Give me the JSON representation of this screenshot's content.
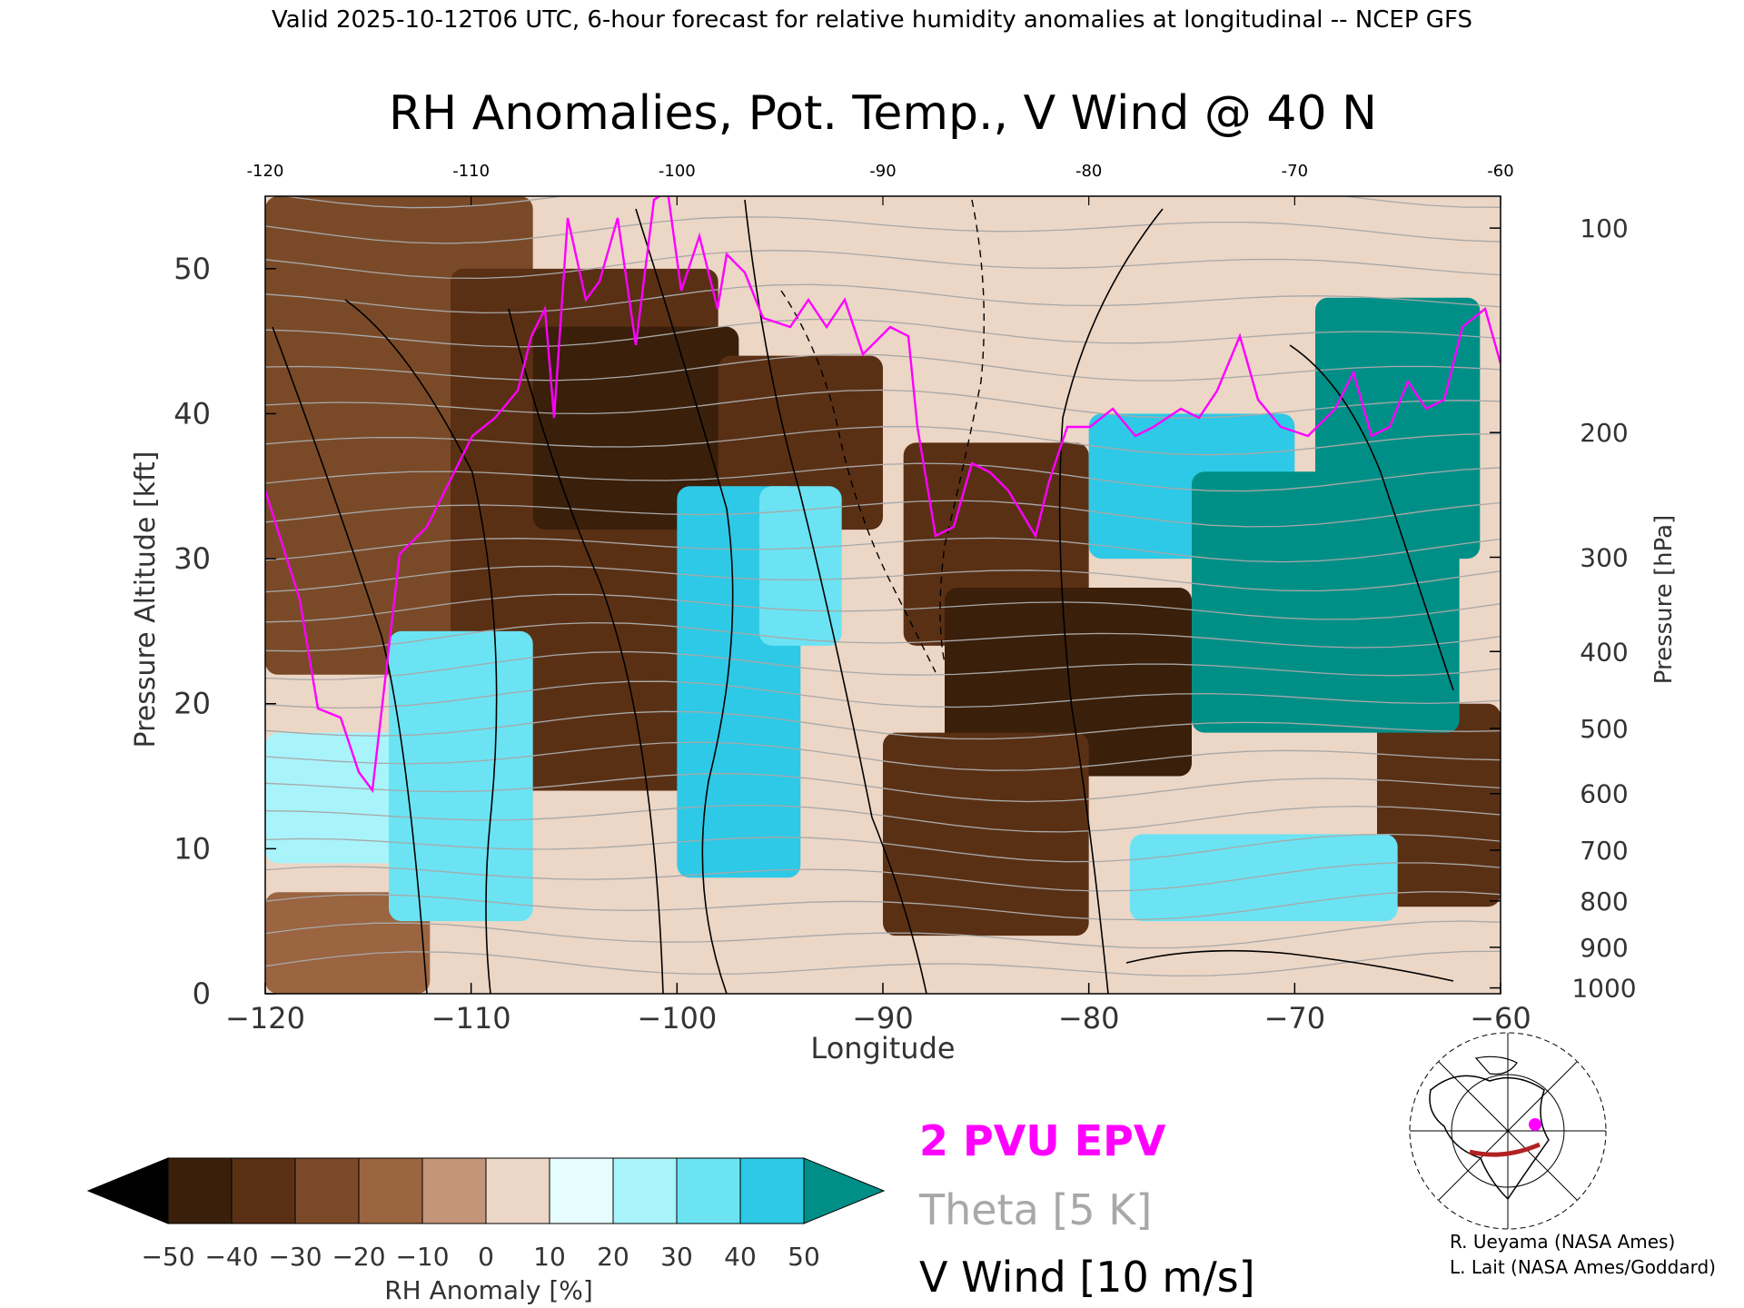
{
  "header": {
    "valid_line": "Valid 2025-10-12T06 UTC, 6-hour forecast for relative humidity anomalies at longitudinal -- NCEP GFS"
  },
  "chart_data": {
    "type": "heatmap",
    "title": "RH Anomalies, Pot. Temp., V Wind @ 40 N",
    "xlabel": "Longitude",
    "ylabel": "Pressure Altitude [kft]",
    "ylabel_right": "Pressure [hPa]",
    "xlim": [
      -120,
      -60
    ],
    "ylim": [
      0,
      55
    ],
    "x_ticks": [
      -120,
      -110,
      -100,
      -90,
      -80,
      -70,
      -60
    ],
    "x_tick_labels": [
      "−120",
      "−110",
      "−100",
      "−90",
      "−80",
      "−70",
      "−60"
    ],
    "top_tick_labels": [
      "-120",
      "-110",
      "-100",
      "-90",
      "-80",
      "-70",
      "-60"
    ],
    "y_ticks": [
      0,
      10,
      20,
      30,
      40,
      50
    ],
    "y_tick_labels": [
      "0",
      "10",
      "20",
      "30",
      "40",
      "50"
    ],
    "pressure_ticks": [
      {
        "hpa": 100,
        "kft": 52.8,
        "label": "100"
      },
      {
        "hpa": 200,
        "kft": 38.7,
        "label": "200"
      },
      {
        "hpa": 300,
        "kft": 30.1,
        "label": "300"
      },
      {
        "hpa": 400,
        "kft": 23.6,
        "label": "400"
      },
      {
        "hpa": 500,
        "kft": 18.3,
        "label": "500"
      },
      {
        "hpa": 600,
        "kft": 13.8,
        "label": "600"
      },
      {
        "hpa": 700,
        "kft": 9.9,
        "label": "700"
      },
      {
        "hpa": 800,
        "kft": 6.4,
        "label": "800"
      },
      {
        "hpa": 900,
        "kft": 3.2,
        "label": "900"
      },
      {
        "hpa": 1000,
        "kft": 0.4,
        "label": "1000"
      }
    ],
    "rh_anomaly_regions": [
      {
        "lon": [
          -120,
          -107
        ],
        "kft": [
          22,
          55
        ],
        "value": -30
      },
      {
        "lon": [
          -111,
          -98
        ],
        "kft": [
          14,
          50
        ],
        "value": -40
      },
      {
        "lon": [
          -107,
          -97
        ],
        "kft": [
          32,
          46
        ],
        "value": -50
      },
      {
        "lon": [
          -98,
          -90
        ],
        "kft": [
          32,
          44
        ],
        "value": -40
      },
      {
        "lon": [
          -89,
          -80
        ],
        "kft": [
          24,
          38
        ],
        "value": -40
      },
      {
        "lon": [
          -87,
          -75
        ],
        "kft": [
          15,
          28
        ],
        "value": -50
      },
      {
        "lon": [
          -90,
          -80
        ],
        "kft": [
          4,
          18
        ],
        "value": -40
      },
      {
        "lon": [
          -66,
          -60
        ],
        "kft": [
          6,
          20
        ],
        "value": -40
      },
      {
        "lon": [
          -120,
          -112
        ],
        "kft": [
          0,
          7
        ],
        "value": -20
      },
      {
        "lon": [
          -120,
          -113
        ],
        "kft": [
          9,
          18
        ],
        "value": 20
      },
      {
        "lon": [
          -114,
          -107
        ],
        "kft": [
          5,
          25
        ],
        "value": 30
      },
      {
        "lon": [
          -100,
          -94
        ],
        "kft": [
          8,
          35
        ],
        "value": 40
      },
      {
        "lon": [
          -96,
          -92
        ],
        "kft": [
          24,
          35
        ],
        "value": 30
      },
      {
        "lon": [
          -78,
          -65
        ],
        "kft": [
          5,
          11
        ],
        "value": 30
      },
      {
        "lon": [
          -80,
          -70
        ],
        "kft": [
          30,
          40
        ],
        "value": 40
      },
      {
        "lon": [
          -75,
          -62
        ],
        "kft": [
          18,
          36
        ],
        "value": 50
      },
      {
        "lon": [
          -69,
          -61
        ],
        "kft": [
          30,
          48
        ],
        "value": 50
      }
    ],
    "legend": {
      "colorbar_label": "RH Anomaly [%]",
      "colorbar_ticks": [
        "−50",
        "−40",
        "−30",
        "−20",
        "−10",
        "0",
        "10",
        "20",
        "30",
        "40",
        "50"
      ],
      "colorbar_colors": [
        "#3a1f0a",
        "#5a3015",
        "#7a4a28",
        "#9a6540",
        "#c49578",
        "#ecd6c6",
        "#e6fdff",
        "#a9f3fb",
        "#6be3f3",
        "#2ec9e6",
        "#0f90b8"
      ],
      "low_extend_color": "#000000",
      "high_extend_color": "#008f87",
      "epv_label": "2 PVU EPV",
      "theta_label": "Theta [5 K]",
      "wind_label": "V Wind [10 m/s]",
      "epv_color": "#ff00ff",
      "theta_color": "#a8a8a8",
      "wind_color": "#000000"
    }
  },
  "credits": {
    "line1": "R. Ueyama (NASA Ames)",
    "line2": "L. Lait (NASA Ames/Goddard)"
  }
}
